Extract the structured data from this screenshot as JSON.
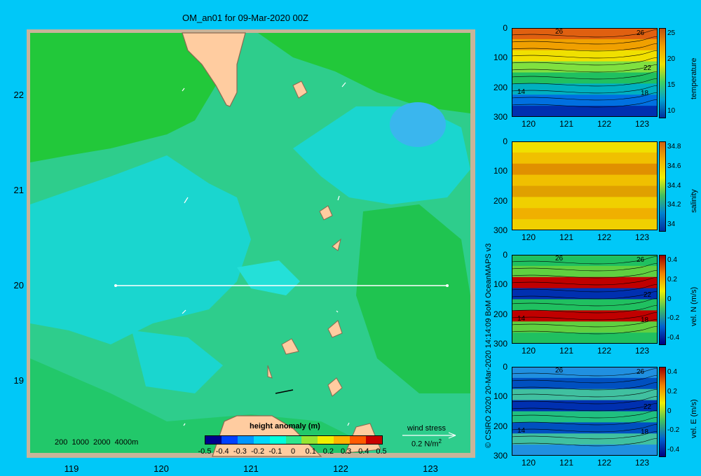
{
  "map": {
    "title": "OM_an01 for 09-Mar-2020 00Z",
    "lat_ticks": [
      "22",
      "21",
      "20",
      "19"
    ],
    "lon_ticks": [
      "119",
      "120",
      "121",
      "122",
      "123"
    ],
    "bathy_contours": "200  1000  2000  4000m",
    "transect_lat": 20,
    "colorbar": {
      "label": "height anomaly (m)",
      "ticks": [
        "-0.5",
        "-0.4",
        "-0.3",
        "-0.2",
        "-0.1",
        "0",
        "0.1",
        "0.2",
        "0.3",
        "0.4",
        "0.5"
      ],
      "colors": [
        "#00008c",
        "#0040ff",
        "#0096ff",
        "#00d7ff",
        "#00ffdc",
        "#2ee68c",
        "#96e632",
        "#f0f000",
        "#ffb400",
        "#ff5a00",
        "#c80000"
      ]
    },
    "wind_stress": {
      "label": "wind stress",
      "scale": "0.2 N/m",
      "exp": "2"
    }
  },
  "credit": "© CSIRO 2020   20-Mar-2020 14:14:09 BoM OceanMAPS v3",
  "sections": [
    {
      "name": "temperature",
      "x_ticks": [
        "120",
        "121",
        "122",
        "123"
      ],
      "y_ticks": [
        "0",
        "100",
        "200",
        "300"
      ],
      "cbar_ticks": [
        "25",
        "20",
        "15",
        "10"
      ],
      "contour_labels": [
        "26",
        "26",
        "22",
        "18",
        "14"
      ]
    },
    {
      "name": "salinity",
      "x_ticks": [
        "120",
        "121",
        "122",
        "123"
      ],
      "y_ticks": [
        "0",
        "100",
        "200",
        "300"
      ],
      "cbar_ticks": [
        "34.8",
        "34.6",
        "34.4",
        "34.2",
        "34"
      ]
    },
    {
      "name": "vel. N  (m/s)",
      "x_ticks": [
        "120",
        "121",
        "122",
        "123"
      ],
      "y_ticks": [
        "0",
        "100",
        "200",
        "300"
      ],
      "cbar_ticks": [
        "0.4",
        "0.2",
        "0",
        "-0.2",
        "-0.4"
      ],
      "contour_labels": [
        "26",
        "26",
        "22",
        "18",
        "14"
      ]
    },
    {
      "name": "vel. E  (m/s)",
      "x_ticks": [
        "120",
        "121",
        "122",
        "123"
      ],
      "y_ticks": [
        "0",
        "100",
        "200",
        "300"
      ],
      "cbar_ticks": [
        "0.4",
        "0.2",
        "0",
        "-0.2",
        "-0.4"
      ],
      "contour_labels": [
        "26",
        "26",
        "22",
        "18",
        "14"
      ]
    }
  ]
}
